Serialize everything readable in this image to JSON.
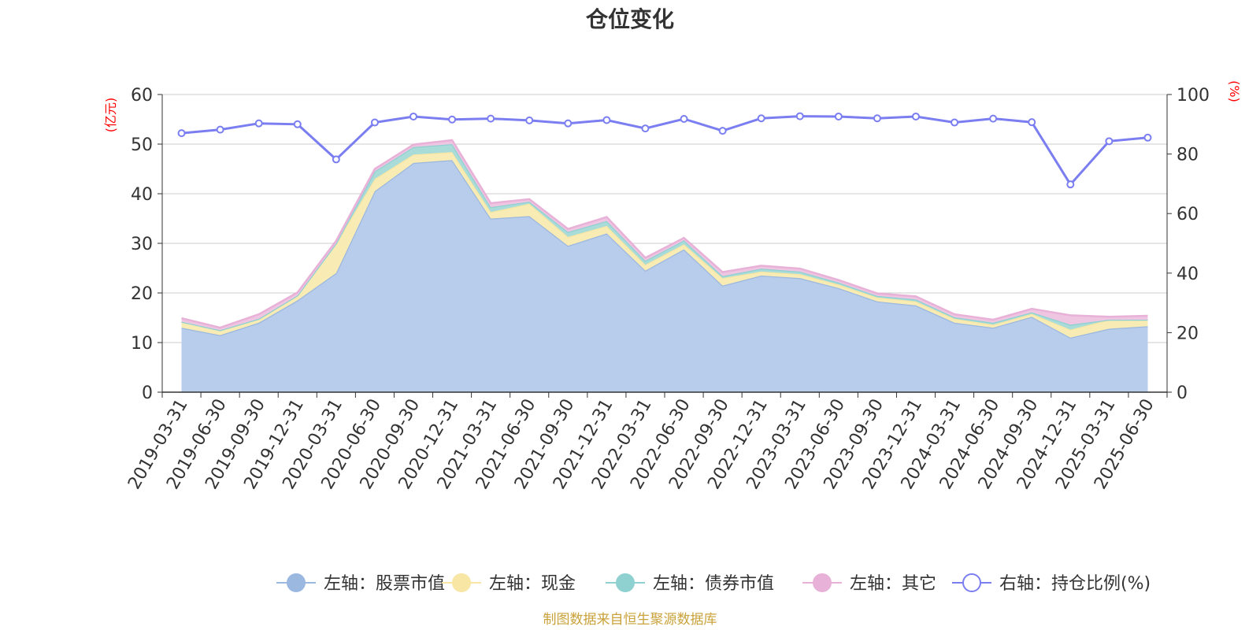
{
  "chart_data": {
    "type": "area",
    "title": "仓位变化",
    "left_axis": {
      "unit_label": "(亿元)",
      "range": [
        0,
        60
      ],
      "ticks": [
        "0",
        "10",
        "20",
        "30",
        "40",
        "50",
        "60"
      ]
    },
    "right_axis": {
      "unit_label": "(%)",
      "range": [
        0,
        100
      ],
      "ticks": [
        "0",
        "20",
        "40",
        "60",
        "80",
        "100"
      ]
    },
    "grid": true,
    "legend_position": "bottom",
    "categories": [
      "2019-03-31",
      "2019-06-30",
      "2019-09-30",
      "2019-12-31",
      "2020-03-31",
      "2020-06-30",
      "2020-09-30",
      "2020-12-31",
      "2021-03-31",
      "2021-06-30",
      "2021-09-30",
      "2021-12-31",
      "2022-03-31",
      "2022-06-30",
      "2022-09-30",
      "2022-12-31",
      "2023-03-31",
      "2023-06-30",
      "2023-09-30",
      "2023-12-31",
      "2024-03-31",
      "2024-06-30",
      "2024-09-30",
      "2024-12-31",
      "2025-03-31",
      "2025-06-30"
    ],
    "stacked_series": [
      {
        "name": "左轴：股票市值",
        "color": "#9bb8e0",
        "fill": "#b8cceb",
        "values": [
          13.0,
          11.5,
          14.0,
          18.5,
          24.0,
          40.5,
          46.2,
          46.8,
          35.0,
          35.5,
          29.5,
          32.0,
          24.5,
          28.8,
          21.5,
          23.5,
          23.0,
          21.0,
          18.3,
          17.5,
          14.0,
          13.0,
          15.2,
          11.0,
          12.8,
          13.3
        ]
      },
      {
        "name": "左轴：现金",
        "color": "#f7e6a4",
        "fill": "#f8ebb4",
        "values": [
          1.2,
          1.0,
          0.8,
          1.0,
          6.0,
          2.5,
          1.7,
          1.6,
          1.3,
          2.5,
          1.8,
          1.5,
          1.2,
          1.0,
          1.5,
          0.8,
          0.8,
          0.7,
          0.8,
          0.8,
          0.8,
          0.6,
          0.6,
          1.6,
          1.8,
          1.3
        ]
      },
      {
        "name": "左轴：债券市值",
        "color": "#8fd1d1",
        "fill": "#a9dcd9",
        "values": [
          0.0,
          0.0,
          0.0,
          0.0,
          0.0,
          1.5,
          1.5,
          1.6,
          1.0,
          0.4,
          1.0,
          1.0,
          0.8,
          0.8,
          0.4,
          0.6,
          0.5,
          0.4,
          0.3,
          0.4,
          0.3,
          0.4,
          0.3,
          1.0,
          0.0,
          0.0
        ]
      },
      {
        "name": "左轴：其它",
        "color": "#e8b1d7",
        "fill": "#efc6e2",
        "values": [
          0.7,
          0.5,
          0.9,
          0.6,
          0.5,
          0.5,
          0.5,
          0.8,
          0.8,
          0.5,
          0.6,
          0.8,
          0.6,
          0.5,
          0.8,
          0.6,
          0.6,
          0.5,
          0.5,
          0.6,
          0.6,
          0.6,
          0.7,
          1.9,
          0.6,
          0.8
        ]
      }
    ],
    "line_series": {
      "name": "右轴：持仓比例(%)",
      "color": "#7b7ef0",
      "values": [
        87.0,
        88.2,
        90.3,
        90.0,
        78.2,
        90.6,
        92.6,
        91.6,
        91.9,
        91.3,
        90.3,
        91.4,
        88.6,
        91.8,
        87.8,
        92.0,
        92.7,
        92.6,
        92.0,
        92.6,
        90.6,
        91.9,
        90.7,
        69.8,
        84.3,
        85.5
      ]
    },
    "source": "制图数据来自恒生聚源数据库"
  }
}
